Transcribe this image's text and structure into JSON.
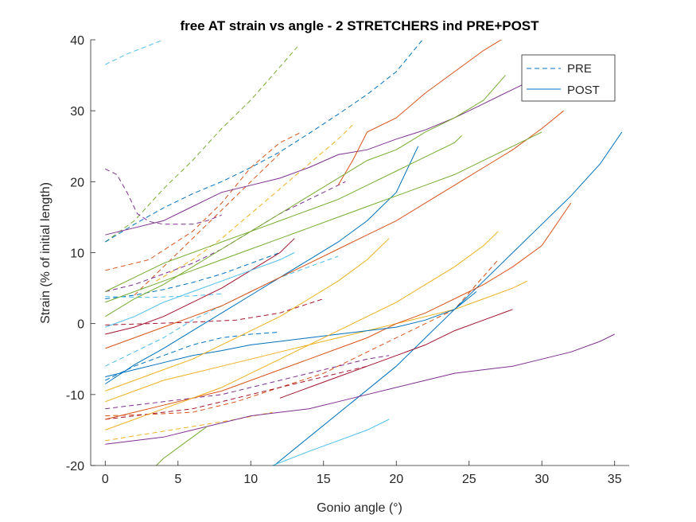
{
  "chart_data": {
    "type": "line",
    "title": "free AT strain vs angle - 2 STRETCHERS ind PRE+POST",
    "xlabel": "Gonio angle (°)",
    "ylabel": "Strain (% of initial length)",
    "xlim": [
      -1,
      36
    ],
    "ylim": [
      -20,
      40
    ],
    "xticks": [
      0,
      5,
      10,
      15,
      20,
      25,
      30,
      35
    ],
    "yticks": [
      -20,
      -10,
      0,
      10,
      20,
      30,
      40
    ],
    "grid": false,
    "legend": {
      "placement": "top-right",
      "entries": [
        {
          "label": "PRE",
          "style": "dashed",
          "color": "#0072bd"
        },
        {
          "label": "POST",
          "style": "solid",
          "color": "#0072bd"
        }
      ]
    },
    "series": [
      {
        "style": "dashed",
        "color": "#4dbeee",
        "x": [
          0,
          1.5,
          3,
          4
        ],
        "y": [
          36.5,
          38,
          39.2,
          40
        ]
      },
      {
        "style": "dashed",
        "color": "#77ac30",
        "x": [
          0,
          2,
          4,
          6,
          8,
          10,
          11.5,
          13.2
        ],
        "y": [
          11.5,
          14.5,
          19,
          23,
          27.5,
          31.5,
          35,
          39
        ]
      },
      {
        "style": "dashed",
        "color": "#7e2f8e",
        "x": [
          0,
          0.8,
          1.5,
          2.2,
          3,
          4,
          5,
          6,
          7,
          8
        ],
        "y": [
          21.8,
          21,
          18.5,
          15.5,
          14.4,
          14,
          14,
          14,
          14.5,
          15.3
        ]
      },
      {
        "style": "dashed",
        "color": "#0072bd",
        "x": [
          0,
          2,
          4,
          6,
          8,
          10,
          12,
          14,
          16,
          18,
          20,
          21.8
        ],
        "y": [
          11.5,
          14,
          16.3,
          18.3,
          20,
          22,
          24.2,
          26.8,
          29.5,
          32.3,
          35.5,
          40
        ]
      },
      {
        "style": "dashed",
        "color": "#d95319",
        "x": [
          0,
          3,
          6,
          8,
          10,
          12,
          13.5
        ],
        "y": [
          7.5,
          9,
          13,
          17,
          22,
          25.5,
          27
        ]
      },
      {
        "style": "dashed",
        "color": "#edb120",
        "x": [
          3.5,
          6,
          8,
          10,
          12,
          14,
          16,
          17
        ],
        "y": [
          6,
          9,
          12,
          15.5,
          19,
          22.5,
          26,
          28
        ]
      },
      {
        "style": "dashed",
        "color": "#d95319",
        "x": [
          2,
          4,
          6,
          8,
          10,
          12
        ],
        "y": [
          4,
          8,
          12,
          16,
          20,
          24
        ]
      },
      {
        "style": "dashed",
        "color": "#7e2f8e",
        "x": [
          0,
          2,
          4,
          6,
          8,
          10,
          12,
          14,
          16,
          16.5
        ],
        "y": [
          4.5,
          5.5,
          7,
          8.5,
          10.5,
          13,
          15.5,
          17.5,
          19.5,
          20
        ]
      },
      {
        "style": "dashed",
        "color": "#0072bd",
        "x": [
          0,
          2,
          4,
          6,
          8,
          10,
          12
        ],
        "y": [
          3.5,
          4,
          4.8,
          5.8,
          7,
          8.5,
          10
        ]
      },
      {
        "style": "dashed",
        "color": "#4dbeee",
        "x": [
          0,
          3,
          6,
          8
        ],
        "y": [
          3.8,
          3.7,
          3.9,
          4.2
        ]
      },
      {
        "style": "dashed",
        "color": "#4dbeee",
        "x": [
          0,
          2,
          4,
          6,
          8,
          10,
          12,
          14,
          16
        ],
        "y": [
          -6,
          -4,
          -2,
          0.5,
          2.5,
          4.5,
          6.5,
          8,
          9.5
        ]
      },
      {
        "style": "dashed",
        "color": "#a2142f",
        "x": [
          0,
          3,
          6,
          9,
          12,
          15
        ],
        "y": [
          -0.2,
          0,
          0.2,
          0.5,
          1.5,
          3.5
        ]
      },
      {
        "style": "dashed",
        "color": "#0072bd",
        "x": [
          0,
          2,
          4,
          6,
          8,
          10,
          12
        ],
        "y": [
          -8,
          -6,
          -4.5,
          -3,
          -2,
          -1.5,
          -1.2
        ]
      },
      {
        "style": "dashed",
        "color": "#d95319",
        "x": [
          0,
          3,
          6,
          9,
          12,
          15,
          18,
          21,
          24,
          27
        ],
        "y": [
          -13,
          -12.8,
          -12.5,
          -11,
          -9,
          -7,
          -4,
          -1,
          2,
          9
        ]
      },
      {
        "style": "dashed",
        "color": "#7e2f8e",
        "x": [
          0,
          2,
          4,
          6,
          8,
          10,
          12,
          14,
          16,
          18,
          19.5
        ],
        "y": [
          -12,
          -11.5,
          -11,
          -10.5,
          -10,
          -9,
          -8,
          -7,
          -6,
          -5,
          -4.5
        ]
      },
      {
        "style": "dashed",
        "color": "#edb120",
        "x": [
          0,
          3,
          6,
          9,
          11.5
        ],
        "y": [
          -16.5,
          -15.5,
          -14.5,
          -13.5,
          -12.5
        ]
      },
      {
        "style": "dashed",
        "color": "#a2142f",
        "x": [
          0,
          2,
          4,
          6,
          8,
          10,
          12,
          14,
          16,
          18
        ],
        "y": [
          -13.5,
          -13,
          -12.5,
          -12,
          -11,
          -10,
          -9,
          -8,
          -7,
          -6
        ]
      },
      {
        "style": "solid",
        "color": "#7e2f8e",
        "x": [
          0,
          2,
          4,
          6,
          8,
          10,
          12,
          14,
          16,
          18,
          20,
          22,
          24,
          26,
          28,
          30,
          31.5
        ],
        "y": [
          12.5,
          13.5,
          14.5,
          16.5,
          18.5,
          19.5,
          20.5,
          22,
          23.8,
          24.5,
          26,
          27.3,
          29,
          31,
          33,
          35,
          37
        ]
      },
      {
        "style": "solid",
        "color": "#d95319",
        "x": [
          16,
          17,
          18,
          20,
          22,
          24,
          26,
          28,
          30,
          31.5
        ],
        "y": [
          19.5,
          23,
          27,
          29,
          32.5,
          35.5,
          38.5,
          41,
          43,
          44
        ]
      },
      {
        "style": "solid",
        "color": "#77ac30",
        "x": [
          0,
          2,
          4,
          6,
          8,
          10,
          12,
          14,
          16,
          18,
          20,
          22,
          24,
          26,
          27.5
        ],
        "y": [
          1,
          3.5,
          5.5,
          8,
          10.5,
          13,
          15.5,
          18,
          20.5,
          23,
          24.5,
          27,
          29,
          31.5,
          35
        ]
      },
      {
        "style": "solid",
        "color": "#0072bd",
        "x": [
          0,
          2,
          4,
          6,
          8,
          10,
          12,
          14,
          16,
          18,
          20,
          21.5
        ],
        "y": [
          -8.5,
          -5.8,
          -3.5,
          -1,
          1.5,
          4,
          6.5,
          9,
          11.5,
          14.5,
          18.5,
          25
        ]
      },
      {
        "style": "solid",
        "color": "#0072bd",
        "x": [
          11,
          14,
          17,
          20,
          22,
          24,
          26,
          28,
          30,
          32,
          34,
          35.5
        ],
        "y": [
          -21,
          -16,
          -11,
          -6,
          -2,
          2,
          6,
          10,
          14,
          18,
          22.5,
          27
        ]
      },
      {
        "style": "solid",
        "color": "#d95319",
        "x": [
          0,
          2,
          4,
          6,
          8,
          10,
          12,
          14,
          16,
          18,
          20,
          22,
          24,
          26,
          28,
          30,
          31.5
        ],
        "y": [
          -3.5,
          -2,
          -0.5,
          1,
          2.5,
          4.5,
          6.5,
          8.5,
          10.5,
          12.5,
          14.5,
          17,
          19.5,
          22,
          24.5,
          27.5,
          30
        ]
      },
      {
        "style": "solid",
        "color": "#77ac30",
        "x": [
          0,
          2,
          4,
          6,
          8,
          10,
          12,
          14,
          16,
          18,
          20,
          22,
          24,
          24.5
        ],
        "y": [
          4.5,
          6.5,
          8.5,
          10,
          11.5,
          13,
          14.5,
          16,
          17.5,
          19.5,
          21.5,
          23.5,
          25.5,
          26.5
        ]
      },
      {
        "style": "solid",
        "color": "#7e2f8e",
        "x": [
          0,
          2,
          4,
          6,
          8,
          10,
          12,
          14,
          16,
          18,
          20,
          22,
          24,
          26,
          28,
          30,
          32,
          34,
          35
        ],
        "y": [
          -17,
          -16.5,
          -16,
          -15,
          -14,
          -13,
          -12.5,
          -12,
          -11,
          -10,
          -9,
          -8,
          -7,
          -6.5,
          -6,
          -5,
          -4,
          -2.5,
          -1.5
        ]
      },
      {
        "style": "solid",
        "color": "#4dbeee",
        "x": [
          11.5,
          14,
          16,
          18,
          19.5
        ],
        "y": [
          -20,
          -18,
          -16.5,
          -15,
          -13.5
        ]
      },
      {
        "style": "solid",
        "color": "#edb120",
        "x": [
          0,
          2,
          4,
          6,
          8,
          10,
          12,
          14,
          16,
          18,
          20,
          22,
          24,
          26,
          28,
          29
        ],
        "y": [
          -11,
          -9.5,
          -8,
          -7,
          -6,
          -5,
          -4,
          -3,
          -2,
          -1,
          0,
          1,
          2,
          3.5,
          5,
          6
        ]
      },
      {
        "style": "solid",
        "color": "#d95319",
        "x": [
          0,
          2,
          4,
          6,
          8,
          10,
          12,
          14,
          16,
          18,
          20,
          22,
          24,
          26,
          28,
          30,
          32
        ],
        "y": [
          -13.5,
          -12.5,
          -11.5,
          -10.5,
          -9.5,
          -8,
          -6.5,
          -5,
          -3.5,
          -2,
          0,
          1.5,
          3.5,
          5.5,
          8,
          11,
          17
        ]
      },
      {
        "style": "solid",
        "color": "#a2142f",
        "x": [
          12,
          14,
          16,
          18,
          20,
          22,
          24,
          26,
          28
        ],
        "y": [
          -10.5,
          -9,
          -7.5,
          -6,
          -4.5,
          -3,
          -1,
          0.5,
          2
        ]
      },
      {
        "style": "solid",
        "color": "#0072bd",
        "x": [
          0,
          2,
          4,
          6,
          8,
          10,
          12,
          14,
          16,
          18,
          20,
          22,
          24,
          25.5
        ],
        "y": [
          -7.5,
          -6.5,
          -5.5,
          -4.5,
          -3.8,
          -3,
          -2.5,
          -2,
          -1.5,
          -1,
          -0.5,
          0.5,
          2,
          4.5
        ]
      },
      {
        "style": "solid",
        "color": "#edb120",
        "x": [
          0,
          2,
          4,
          6,
          8,
          10,
          12,
          14,
          16,
          18,
          20,
          22,
          24,
          26,
          27
        ],
        "y": [
          -15,
          -13.5,
          -12,
          -10.5,
          -9,
          -7,
          -5,
          -3,
          -1,
          1,
          3,
          5.5,
          8,
          11,
          13
        ]
      },
      {
        "style": "solid",
        "color": "#a2142f",
        "x": [
          0,
          2,
          4,
          6,
          8,
          10,
          12,
          13
        ],
        "y": [
          -1.5,
          -0.5,
          1,
          3,
          5,
          7.5,
          10,
          12
        ]
      },
      {
        "style": "solid",
        "color": "#77ac30",
        "x": [
          0,
          2,
          4,
          6,
          8,
          10,
          12,
          14,
          16,
          18,
          20,
          22,
          24,
          26,
          28,
          30
        ],
        "y": [
          3,
          4.5,
          6,
          7.5,
          9,
          10.5,
          12,
          13.5,
          15,
          16.5,
          18,
          19.5,
          21,
          23,
          25,
          27
        ]
      },
      {
        "style": "solid",
        "color": "#4dbeee",
        "x": [
          0,
          2,
          4,
          6,
          8,
          10,
          12,
          13
        ],
        "y": [
          -0.5,
          1,
          3,
          4.5,
          6,
          7.5,
          9,
          10
        ]
      },
      {
        "style": "solid",
        "color": "#edb120",
        "x": [
          0,
          2,
          4,
          6,
          8,
          10,
          12,
          14,
          16,
          18,
          19.5
        ],
        "y": [
          -9.5,
          -8,
          -6.5,
          -5,
          -3,
          -1,
          1,
          3.5,
          6,
          9,
          12
        ]
      },
      {
        "style": "solid",
        "color": "#77ac30",
        "x": [
          3,
          4,
          5,
          6,
          7
        ],
        "y": [
          -21,
          -19,
          -17.5,
          -16,
          -14.5
        ]
      }
    ]
  }
}
